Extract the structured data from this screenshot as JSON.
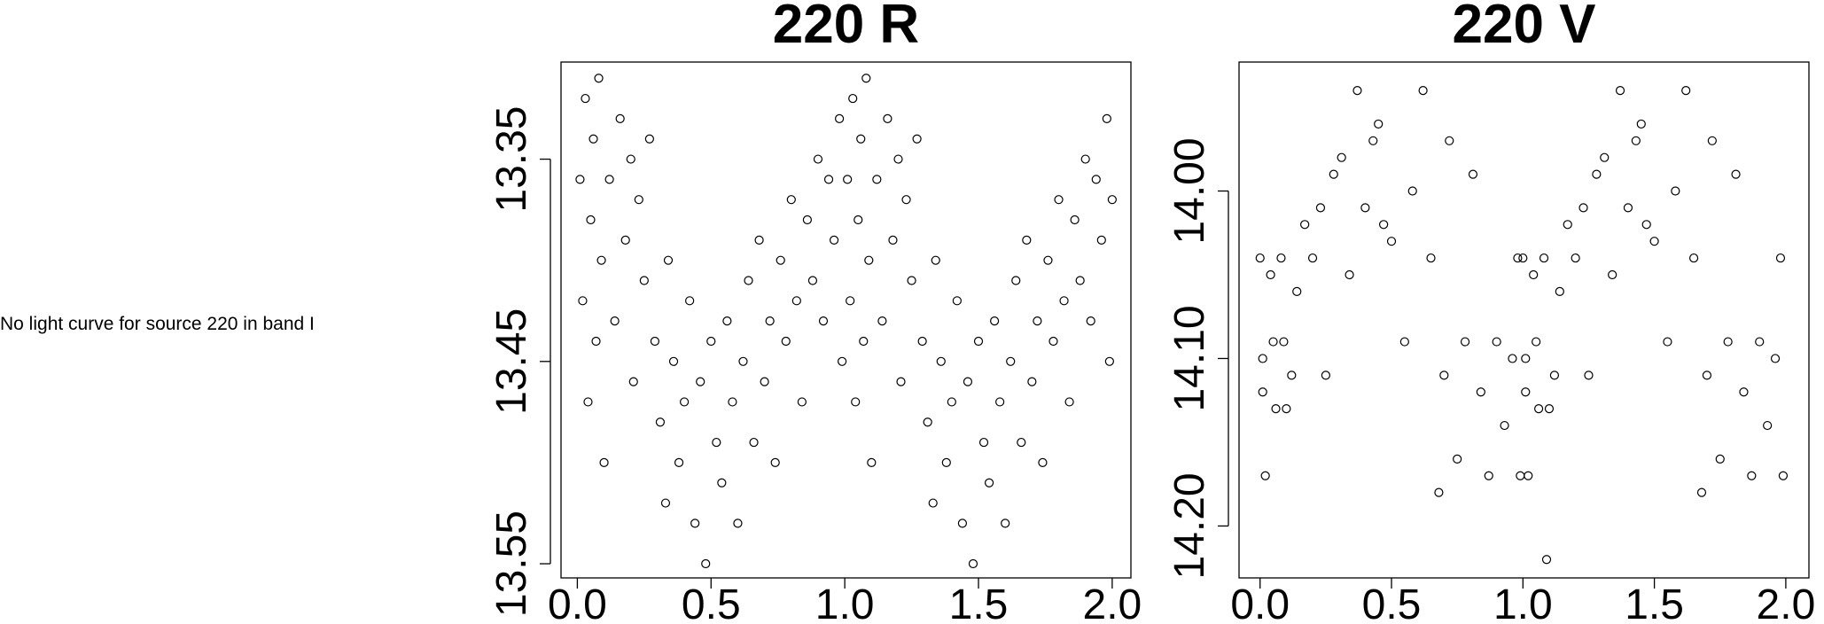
{
  "note": "No light curve for source 220 in band I",
  "chart_data": [
    {
      "type": "scatter",
      "title": "220 R",
      "color": "#000000",
      "xlim": [
        -0.061,
        2.07
      ],
      "ylim": [
        13.557,
        13.302
      ],
      "xticks": [
        {
          "value": 0,
          "label": "0.0"
        },
        0.5,
        {
          "value": 1,
          "label": "1.0"
        },
        1.5,
        {
          "value": 2,
          "label": "2.0"
        }
      ],
      "yticks": [
        13.35,
        13.45,
        13.55
      ],
      "x": [
        0.01,
        0.02,
        0.03,
        0.04,
        0.05,
        0.06,
        0.07,
        0.08,
        0.09,
        0.1,
        0.12,
        0.14,
        0.16,
        0.18,
        0.2,
        0.21,
        0.23,
        0.25,
        0.27,
        0.29,
        0.31,
        0.33,
        0.34,
        0.36,
        0.38,
        0.4,
        0.42,
        0.44,
        0.46,
        0.48,
        0.5,
        0.52,
        0.54,
        0.56,
        0.58,
        0.6,
        0.62,
        0.64,
        0.66,
        0.68,
        0.7,
        0.72,
        0.74,
        0.76,
        0.78,
        0.8,
        0.82,
        0.84,
        0.86,
        0.88,
        0.9,
        0.92,
        0.94,
        0.96,
        0.98,
        0.99,
        1.01,
        1.02,
        1.03,
        1.04,
        1.05,
        1.06,
        1.07,
        1.08,
        1.09,
        1.1,
        1.12,
        1.14,
        1.16,
        1.18,
        1.2,
        1.21,
        1.23,
        1.25,
        1.27,
        1.29,
        1.31,
        1.33,
        1.34,
        1.36,
        1.38,
        1.4,
        1.42,
        1.44,
        1.46,
        1.48,
        1.5,
        1.52,
        1.54,
        1.56,
        1.58,
        1.6,
        1.62,
        1.64,
        1.66,
        1.68,
        1.7,
        1.72,
        1.74,
        1.76,
        1.78,
        1.8,
        1.82,
        1.84,
        1.86,
        1.88,
        1.9,
        1.92,
        1.94,
        1.96,
        1.98,
        1.99,
        2.0
      ],
      "values": [
        13.36,
        13.42,
        13.32,
        13.47,
        13.38,
        13.34,
        13.44,
        13.31,
        13.4,
        13.5,
        13.36,
        13.43,
        13.33,
        13.39,
        13.35,
        13.46,
        13.37,
        13.41,
        13.34,
        13.44,
        13.48,
        13.52,
        13.4,
        13.45,
        13.5,
        13.47,
        13.42,
        13.53,
        13.46,
        13.55,
        13.44,
        13.49,
        13.51,
        13.43,
        13.47,
        13.53,
        13.45,
        13.41,
        13.49,
        13.39,
        13.46,
        13.43,
        13.5,
        13.4,
        13.44,
        13.37,
        13.42,
        13.47,
        13.38,
        13.41,
        13.35,
        13.43,
        13.36,
        13.39,
        13.33,
        13.45,
        13.36,
        13.42,
        13.32,
        13.47,
        13.38,
        13.34,
        13.44,
        13.31,
        13.4,
        13.5,
        13.36,
        13.43,
        13.33,
        13.39,
        13.35,
        13.46,
        13.37,
        13.41,
        13.34,
        13.44,
        13.48,
        13.52,
        13.4,
        13.45,
        13.5,
        13.47,
        13.42,
        13.53,
        13.46,
        13.55,
        13.44,
        13.49,
        13.51,
        13.43,
        13.47,
        13.53,
        13.45,
        13.41,
        13.49,
        13.39,
        13.46,
        13.43,
        13.5,
        13.4,
        13.44,
        13.37,
        13.42,
        13.47,
        13.38,
        13.41,
        13.35,
        13.43,
        13.36,
        13.39,
        13.33,
        13.45,
        13.37
      ]
    },
    {
      "type": "scatter",
      "title": "220 V",
      "color": "#000000",
      "xlim": [
        -0.08,
        2.088
      ],
      "ylim": [
        14.231,
        13.923
      ],
      "xticks": [
        {
          "value": 0,
          "label": "0.0"
        },
        0.5,
        {
          "value": 1,
          "label": "1.0"
        },
        1.5,
        {
          "value": 2,
          "label": "2.0"
        }
      ],
      "yticks": [
        {
          "value": 14,
          "label": "14.00"
        },
        {
          "value": 14.1,
          "label": "14.10"
        },
        {
          "value": 14.2,
          "label": "14.20"
        }
      ],
      "x": [
        0.0,
        0.01,
        0.01,
        0.02,
        0.04,
        0.05,
        0.06,
        0.08,
        0.09,
        0.1,
        0.12,
        0.14,
        0.17,
        0.2,
        0.23,
        0.25,
        0.28,
        0.31,
        0.34,
        0.37,
        0.4,
        0.43,
        0.45,
        0.47,
        0.5,
        0.55,
        0.58,
        0.62,
        0.65,
        0.68,
        0.7,
        0.72,
        0.75,
        0.78,
        0.81,
        0.84,
        0.87,
        0.9,
        0.93,
        0.96,
        0.98,
        0.99,
        1.0,
        1.01,
        1.01,
        1.02,
        1.04,
        1.05,
        1.06,
        1.08,
        1.09,
        1.1,
        1.12,
        1.14,
        1.17,
        1.2,
        1.23,
        1.25,
        1.28,
        1.31,
        1.34,
        1.37,
        1.4,
        1.43,
        1.45,
        1.47,
        1.5,
        1.55,
        1.58,
        1.62,
        1.65,
        1.68,
        1.7,
        1.72,
        1.75,
        1.78,
        1.81,
        1.84,
        1.87,
        1.9,
        1.93,
        1.96,
        1.98,
        1.99
      ],
      "values": [
        14.04,
        14.1,
        14.12,
        14.17,
        14.05,
        14.09,
        14.13,
        14.04,
        14.09,
        14.13,
        14.11,
        14.06,
        14.02,
        14.04,
        14.01,
        14.11,
        13.99,
        13.98,
        14.05,
        13.94,
        14.01,
        13.97,
        13.96,
        14.02,
        14.03,
        14.09,
        14.0,
        13.94,
        14.04,
        14.18,
        14.11,
        13.97,
        14.16,
        14.09,
        13.99,
        14.12,
        14.17,
        14.09,
        14.14,
        14.1,
        14.04,
        14.17,
        14.04,
        14.1,
        14.12,
        14.17,
        14.05,
        14.09,
        14.13,
        14.04,
        14.22,
        14.13,
        14.11,
        14.06,
        14.02,
        14.04,
        14.01,
        14.11,
        13.99,
        13.98,
        14.05,
        13.94,
        14.01,
        13.97,
        13.96,
        14.02,
        14.03,
        14.09,
        14.0,
        13.94,
        14.04,
        14.18,
        14.11,
        13.97,
        14.16,
        14.09,
        13.99,
        14.12,
        14.17,
        14.09,
        14.14,
        14.1,
        14.04,
        14.17
      ]
    }
  ]
}
